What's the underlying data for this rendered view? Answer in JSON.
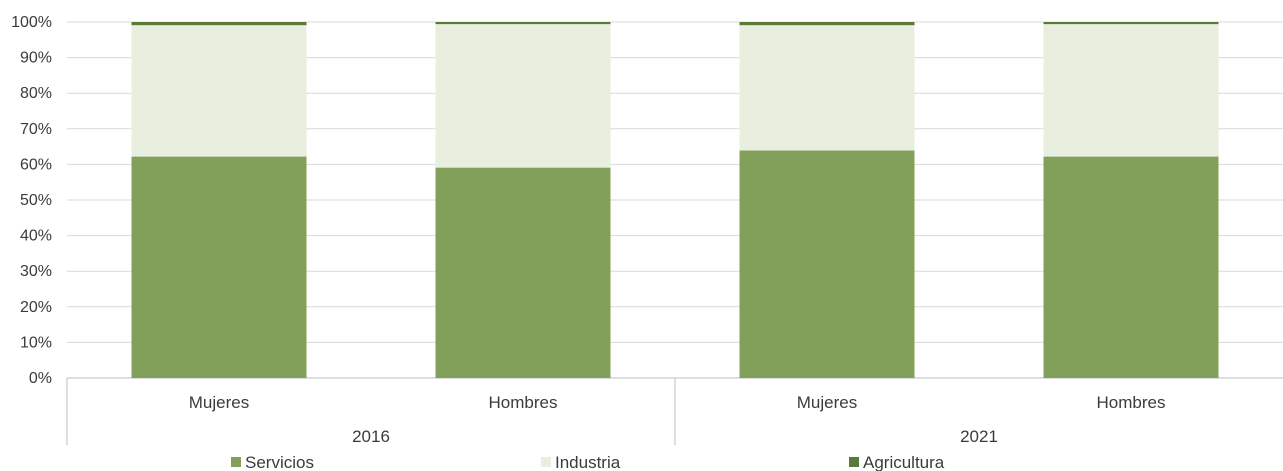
{
  "chart_data": {
    "type": "bar",
    "stacked": true,
    "percent_stacked": true,
    "groups": [
      {
        "label": "2016",
        "categories": [
          "Mujeres",
          "Hombres"
        ]
      },
      {
        "label": "2021",
        "categories": [
          "Mujeres",
          "Hombres"
        ]
      }
    ],
    "categories": [
      "Mujeres",
      "Hombres",
      "Mujeres",
      "Hombres"
    ],
    "series": [
      {
        "name": "Servicios",
        "color": "#83a05a",
        "values": [
          62.2,
          59.1,
          63.9,
          62.2
        ]
      },
      {
        "name": "Industria",
        "color": "#e8efdf",
        "values": [
          36.9,
          40.3,
          35.2,
          37.2
        ]
      },
      {
        "name": "Agricultura",
        "color": "#5b7a3a",
        "values": [
          0.9,
          0.6,
          0.9,
          0.6
        ]
      }
    ],
    "y_ticks": [
      "0%",
      "10%",
      "20%",
      "30%",
      "40%",
      "50%",
      "60%",
      "70%",
      "80%",
      "90%",
      "100%"
    ],
    "ylim": [
      0,
      100
    ],
    "grid": true,
    "legend_position": "bottom"
  }
}
